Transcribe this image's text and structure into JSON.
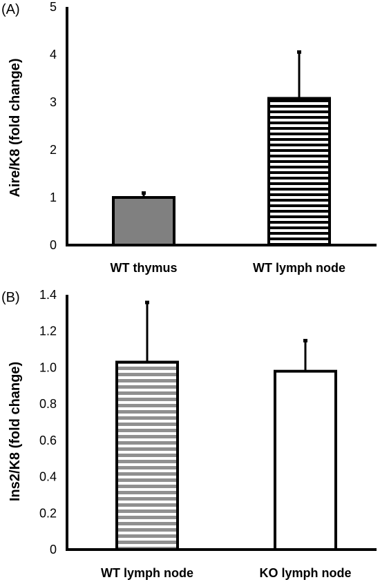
{
  "chart_data": [
    {
      "type": "bar",
      "panel_label": "(A)",
      "ylabel": "Aire/K8 (fold change)",
      "categories": [
        "WT thymus",
        "WT lymph node"
      ],
      "values": [
        1.0,
        3.08
      ],
      "error": [
        0.1,
        0.98
      ],
      "ylim": [
        0,
        5
      ],
      "yticks": [
        "0",
        "1",
        "2",
        "3",
        "4",
        "5"
      ],
      "bar_styles": [
        "gray-fill",
        "black-horizontal-stripes"
      ],
      "grid": false
    },
    {
      "type": "bar",
      "panel_label": "(B)",
      "ylabel": "Ins2/K8 (fold change)",
      "categories": [
        "WT lymph node",
        "KO lymph node"
      ],
      "values": [
        1.03,
        0.98
      ],
      "error": [
        0.33,
        0.17
      ],
      "ylim": [
        0,
        1.4
      ],
      "yticks": [
        "0",
        "0.2",
        "0.4",
        "0.6",
        "0.8",
        "1.0",
        "1.2",
        "1.4"
      ],
      "bar_styles": [
        "gray-horizontal-stripes",
        "white-fill"
      ],
      "grid": false
    }
  ],
  "colors": {
    "axis": "#000000",
    "bar_gray": "#808080",
    "stripe_gray": "#909090",
    "stripe_black": "#000000",
    "white": "#ffffff"
  }
}
